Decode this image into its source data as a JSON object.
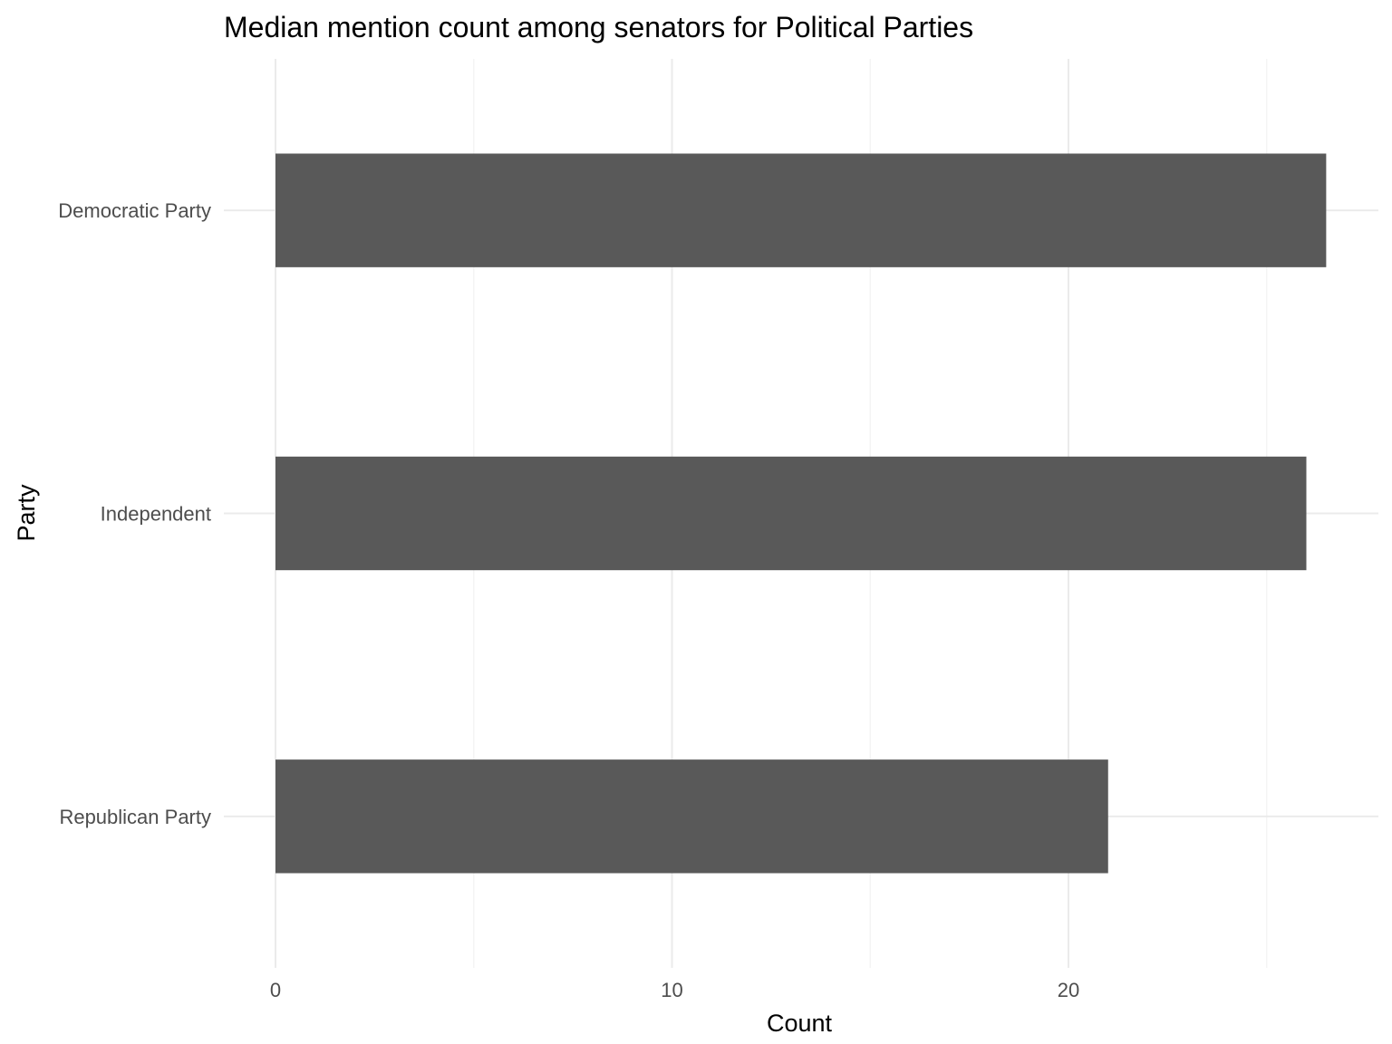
{
  "chart_data": {
    "type": "bar",
    "orientation": "horizontal",
    "title": "Median mention count among senators for Political Parties",
    "xlabel": "Count",
    "ylabel": "Party",
    "categories": [
      "Democratic Party",
      "Independent",
      "Republican Party"
    ],
    "values": [
      26.5,
      26,
      21
    ],
    "xlim": [
      0,
      27.8
    ],
    "xticks": [
      0,
      10,
      20
    ],
    "x_minor_ticks": [
      5,
      15,
      25
    ],
    "grid": true,
    "legend": "none",
    "colors": {
      "bar": "#595959",
      "grid_major": "#ebebeb",
      "grid_minor": "#f2f2f2",
      "background": "#ffffff"
    }
  }
}
